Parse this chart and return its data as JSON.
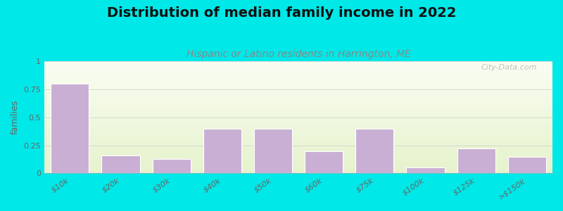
{
  "title": "Distribution of median family income in 2022",
  "subtitle": "Hispanic or Latino residents in Harrington, ME",
  "categories": [
    "$10k",
    "$20k",
    "$30k",
    "$40k",
    "$50k",
    "$60k",
    "$75k",
    "$100k",
    "$125k",
    ">$150k"
  ],
  "values": [
    0.8,
    0.16,
    0.13,
    0.4,
    0.4,
    0.2,
    0.4,
    0.05,
    0.22,
    0.15
  ],
  "bar_color": "#c9afd4",
  "bar_edge_color": "#ffffff",
  "background_color": "#00e8e8",
  "ylim": [
    0,
    1
  ],
  "yticks": [
    0,
    0.25,
    0.5,
    0.75,
    1
  ],
  "ylabel": "families",
  "title_fontsize": 14,
  "subtitle_fontsize": 10,
  "subtitle_color": "#888888",
  "watermark": "City-Data.com",
  "watermark_color": "#aaaaaa",
  "grid_color": "#cccccc",
  "tick_label_color": "#666666",
  "ylabel_color": "#666666"
}
